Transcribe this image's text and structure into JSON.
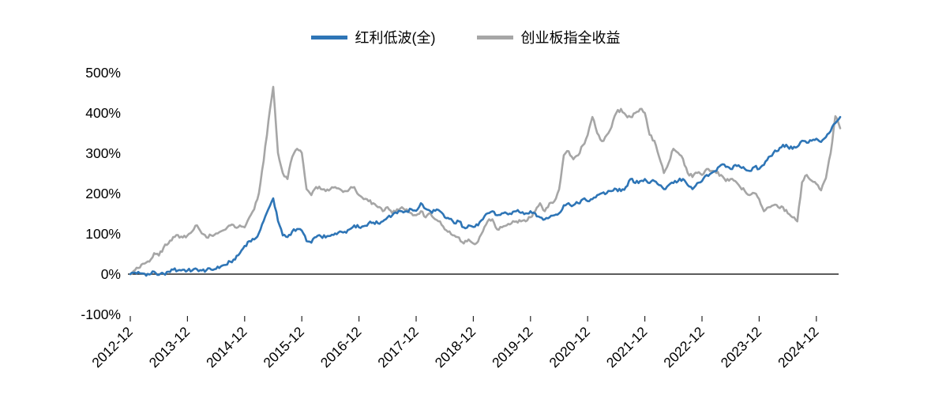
{
  "chart_data": {
    "type": "line",
    "title": "",
    "legend_position": "top-center",
    "grid": false,
    "legend": [
      {
        "label": "红利低波(全)",
        "color": "#2E75B6"
      },
      {
        "label": "创业板指全收益",
        "color": "#A6A6A6"
      }
    ],
    "y_axis": {
      "min": -100,
      "max": 500,
      "step": 100,
      "suffix": "%"
    },
    "y_tick_labels": [
      "500%",
      "400%",
      "300%",
      "200%",
      "100%",
      "0%",
      "-100%"
    ],
    "x_tick_labels": [
      "2012-12",
      "2013-12",
      "2014-12",
      "2015-12",
      "2016-12",
      "2017-12",
      "2018-12",
      "2019-12",
      "2020-12",
      "2021-12",
      "2022-12",
      "2023-12",
      "2024-12"
    ],
    "x_start": "2012-12",
    "x_interval": "monthly",
    "series": [
      {
        "name": "红利低波(全)",
        "color": "#2E75B6",
        "width": 2.6,
        "values": [
          0,
          4,
          2,
          1,
          -1,
          6,
          -2,
          1,
          6,
          11,
          9,
          11,
          9,
          9,
          12,
          9,
          10,
          11,
          13,
          19,
          23,
          31,
          36,
          52,
          70,
          82,
          86,
          102,
          132,
          162,
          188,
          132,
          96,
          92,
          106,
          112,
          108,
          82,
          78,
          92,
          94,
          91,
          95,
          101,
          106,
          105,
          111,
          121,
          116,
          119,
          126,
          128,
          126,
          131,
          141,
          146,
          151,
          156,
          156,
          161,
          157,
          176,
          162,
          156,
          157,
          156,
          141,
          137,
          126,
          131,
          116,
          121,
          117,
          121,
          136,
          151,
          156,
          146,
          151,
          151,
          149,
          156,
          152,
          151,
          156,
          151,
          141,
          136,
          141,
          146,
          151,
          171,
          176,
          171,
          176,
          186,
          181,
          186,
          196,
          201,
          201,
          206,
          211,
          206,
          216,
          236,
          226,
          231,
          236,
          226,
          231,
          221,
          211,
          221,
          226,
          231,
          236,
          221,
          211,
          226,
          231,
          246,
          251,
          256,
          271,
          266,
          261,
          271,
          266,
          261,
          256,
          266,
          261,
          271,
          291,
          301,
          306,
          321,
          316,
          311,
          316,
          331,
          326,
          331,
          336,
          328,
          340,
          355,
          375,
          390
        ]
      },
      {
        "name": "创业板指全收益",
        "color": "#A6A6A6",
        "width": 2.6,
        "values": [
          0,
          10,
          16,
          26,
          31,
          52,
          46,
          66,
          76,
          92,
          97,
          91,
          96,
          106,
          121,
          101,
          91,
          96,
          101,
          106,
          111,
          121,
          116,
          121,
          116,
          141,
          161,
          201,
          281,
          381,
          465,
          301,
          251,
          236,
          291,
          311,
          301,
          211,
          196,
          216,
          211,
          206,
          211,
          216,
          211,
          206,
          211,
          216,
          196,
          186,
          181,
          176,
          166,
          156,
          166,
          151,
          161,
          166,
          161,
          151,
          146,
          156,
          141,
          151,
          136,
          131,
          111,
          106,
          96,
          91,
          76,
          86,
          76,
          81,
          106,
          131,
          136,
          111,
          116,
          121,
          126,
          131,
          131,
          131,
          141,
          156,
          176,
          156,
          176,
          181,
          210,
          295,
          305,
          285,
          295,
          320,
          345,
          390,
          350,
          330,
          345,
          365,
          400,
          410,
          395,
          390,
          400,
          410,
          400,
          346,
          331,
          291,
          251,
          276,
          311,
          301,
          286,
          251,
          241,
          251,
          246,
          261,
          256,
          251,
          246,
          231,
          236,
          231,
          216,
          206,
          196,
          201,
          186,
          156,
          166,
          171,
          166,
          166,
          151,
          141,
          131,
          228,
          246,
          232,
          224,
          208,
          238,
          300,
          392,
          362
        ]
      }
    ]
  }
}
